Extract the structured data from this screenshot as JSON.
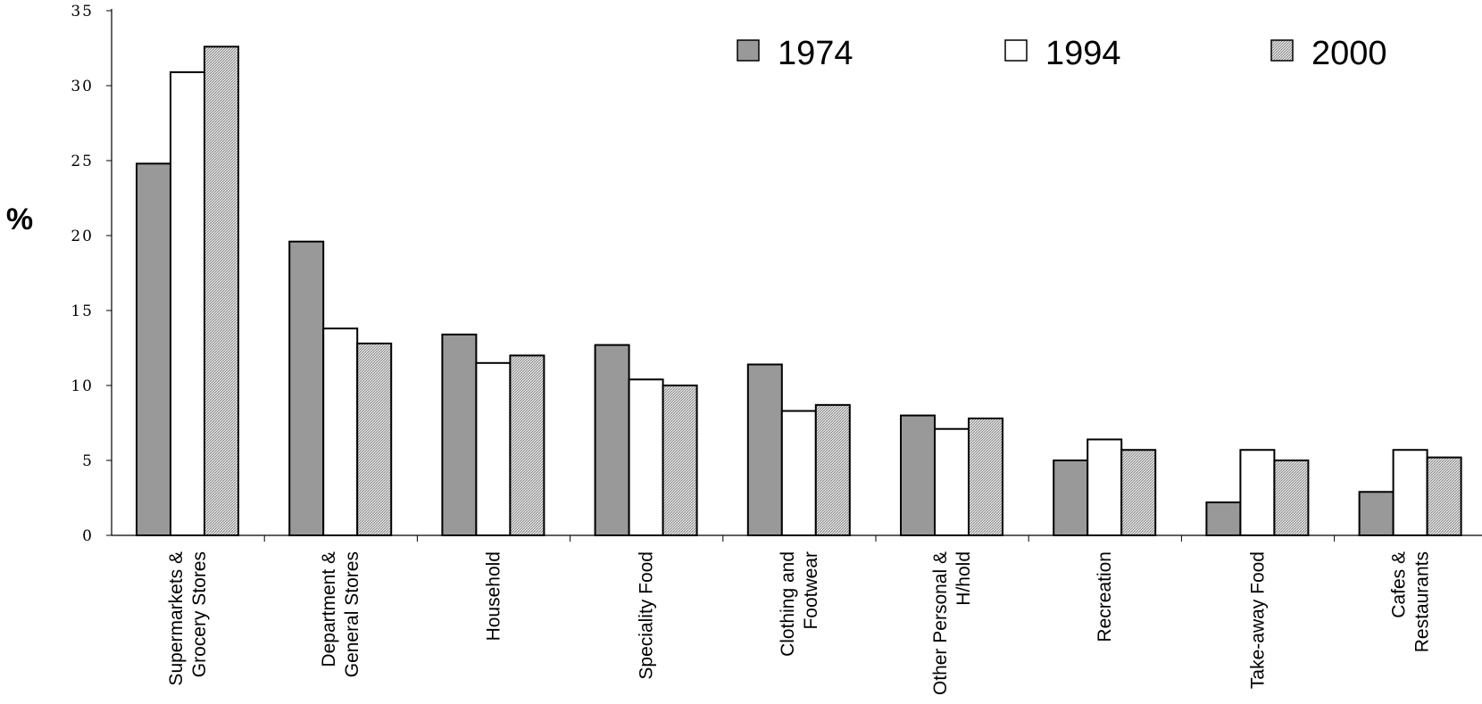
{
  "chart_data": {
    "type": "bar",
    "title": "",
    "xlabel": "",
    "ylabel": "%",
    "ylim": [
      0,
      35
    ],
    "yticks": [
      0,
      5,
      10,
      15,
      20,
      25,
      30,
      35
    ],
    "grid": false,
    "legend_position": "top-right",
    "categories": [
      [
        "Supermarkets &",
        "Grocery Stores"
      ],
      [
        "Department &",
        "General Stores"
      ],
      [
        "Household"
      ],
      [
        "Speciality Food"
      ],
      [
        "Clothing and",
        "Footwear"
      ],
      [
        "Other Personal &",
        "H/hold"
      ],
      [
        "Recreation"
      ],
      [
        "Take-away Food"
      ],
      [
        "Cafes &",
        "Restaurants"
      ]
    ],
    "series": [
      {
        "name": "1974",
        "fill": "#999999",
        "values": [
          24.8,
          19.6,
          13.4,
          12.7,
          11.4,
          8.0,
          5.0,
          2.2,
          2.9
        ]
      },
      {
        "name": "1994",
        "fill": "#ffffff",
        "values": [
          30.9,
          13.8,
          11.5,
          10.4,
          8.3,
          7.1,
          6.4,
          5.7,
          5.7
        ]
      },
      {
        "name": "2000",
        "fill": "hatch",
        "values": [
          32.6,
          12.8,
          12.0,
          10.0,
          8.7,
          7.8,
          5.7,
          5.0,
          5.2
        ]
      }
    ]
  }
}
